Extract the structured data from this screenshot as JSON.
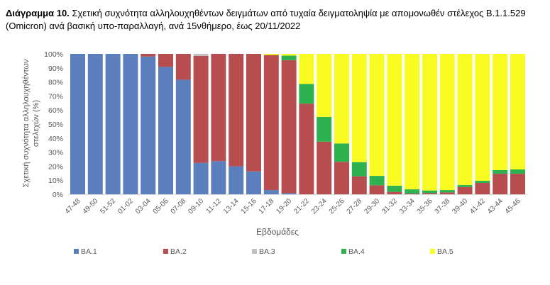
{
  "caption": {
    "label": "Διάγραμμα 10.",
    "text": "Σχετική συχνότητα αλληλουχηθέντων δειγμάτων από τυχαία δειγματοληψία με απομονωθέν στέλεχος B.1.1.529 (Omicron) ανά βασική υπο-παραλλαγή, ανά 15νθήμερο, έως 20/11/2022"
  },
  "chart_data": {
    "type": "bar",
    "stacked": true,
    "title": "",
    "xlabel": "Εβδομάδες",
    "ylabel_lines": [
      "Σχετική συχνότητα αλληλουχηθέντων",
      "στελεχών (%)"
    ],
    "ylim": [
      0,
      100
    ],
    "yticks": [
      "0%",
      "10%",
      "20%",
      "30%",
      "40%",
      "50%",
      "60%",
      "70%",
      "80%",
      "90%",
      "100%"
    ],
    "legend_position": "bottom",
    "categories": [
      "47-48",
      "49-50",
      "51-52",
      "01-02",
      "03-04",
      "05-06",
      "07-08",
      "09-10",
      "11-12",
      "13-14",
      "15-16",
      "17-18",
      "19-20",
      "21-22",
      "23-24",
      "25-26",
      "27-28",
      "29-30",
      "31-32",
      "33-34",
      "35-36",
      "37-38",
      "39-40",
      "41-42",
      "43-44",
      "45-46"
    ],
    "series": [
      {
        "name": "BA.1",
        "color": "#5B7FBD",
        "values": [
          100,
          100,
          100,
          100,
          98.1,
          90.7,
          81.6,
          22.4,
          23.6,
          19.9,
          16.3,
          3.0,
          0.8,
          0,
          0,
          0,
          0,
          0,
          0,
          0,
          0,
          0,
          0,
          0,
          0,
          0
        ]
      },
      {
        "name": "BA.2",
        "color": "#B84D4F",
        "values": [
          0,
          0,
          0,
          0,
          1.9,
          9.3,
          18.4,
          76.1,
          76.4,
          80.1,
          83.7,
          96.2,
          94.7,
          64.6,
          37.5,
          23.1,
          12.8,
          6.4,
          1.7,
          0.5,
          0.8,
          1.3,
          5.1,
          8.1,
          14.6,
          14.6
        ]
      },
      {
        "name": "BA.3",
        "color": "#BFBFBF",
        "values": [
          0,
          0,
          0,
          0,
          0,
          0,
          0,
          1.5,
          0,
          0,
          0,
          0,
          0,
          0,
          0,
          0,
          0,
          0,
          0,
          0,
          0,
          0,
          0,
          0,
          0,
          0
        ]
      },
      {
        "name": "BA.4",
        "color": "#2DB24F",
        "values": [
          0,
          0,
          0,
          0,
          0,
          0,
          0,
          0,
          0,
          0,
          0,
          0,
          3.3,
          14.0,
          17.6,
          13.1,
          10.1,
          6.7,
          4.4,
          3.0,
          1.9,
          1.7,
          1.5,
          1.5,
          2.6,
          3.1
        ]
      },
      {
        "name": "BA.5",
        "color": "#F8FC22",
        "values": [
          0,
          0,
          0,
          0,
          0,
          0,
          0,
          0,
          0,
          0,
          0,
          0.8,
          1.2,
          21.4,
          44.9,
          63.8,
          77.1,
          86.9,
          93.9,
          96.5,
          97.3,
          97.0,
          93.4,
          90.4,
          82.8,
          82.3
        ]
      }
    ]
  }
}
